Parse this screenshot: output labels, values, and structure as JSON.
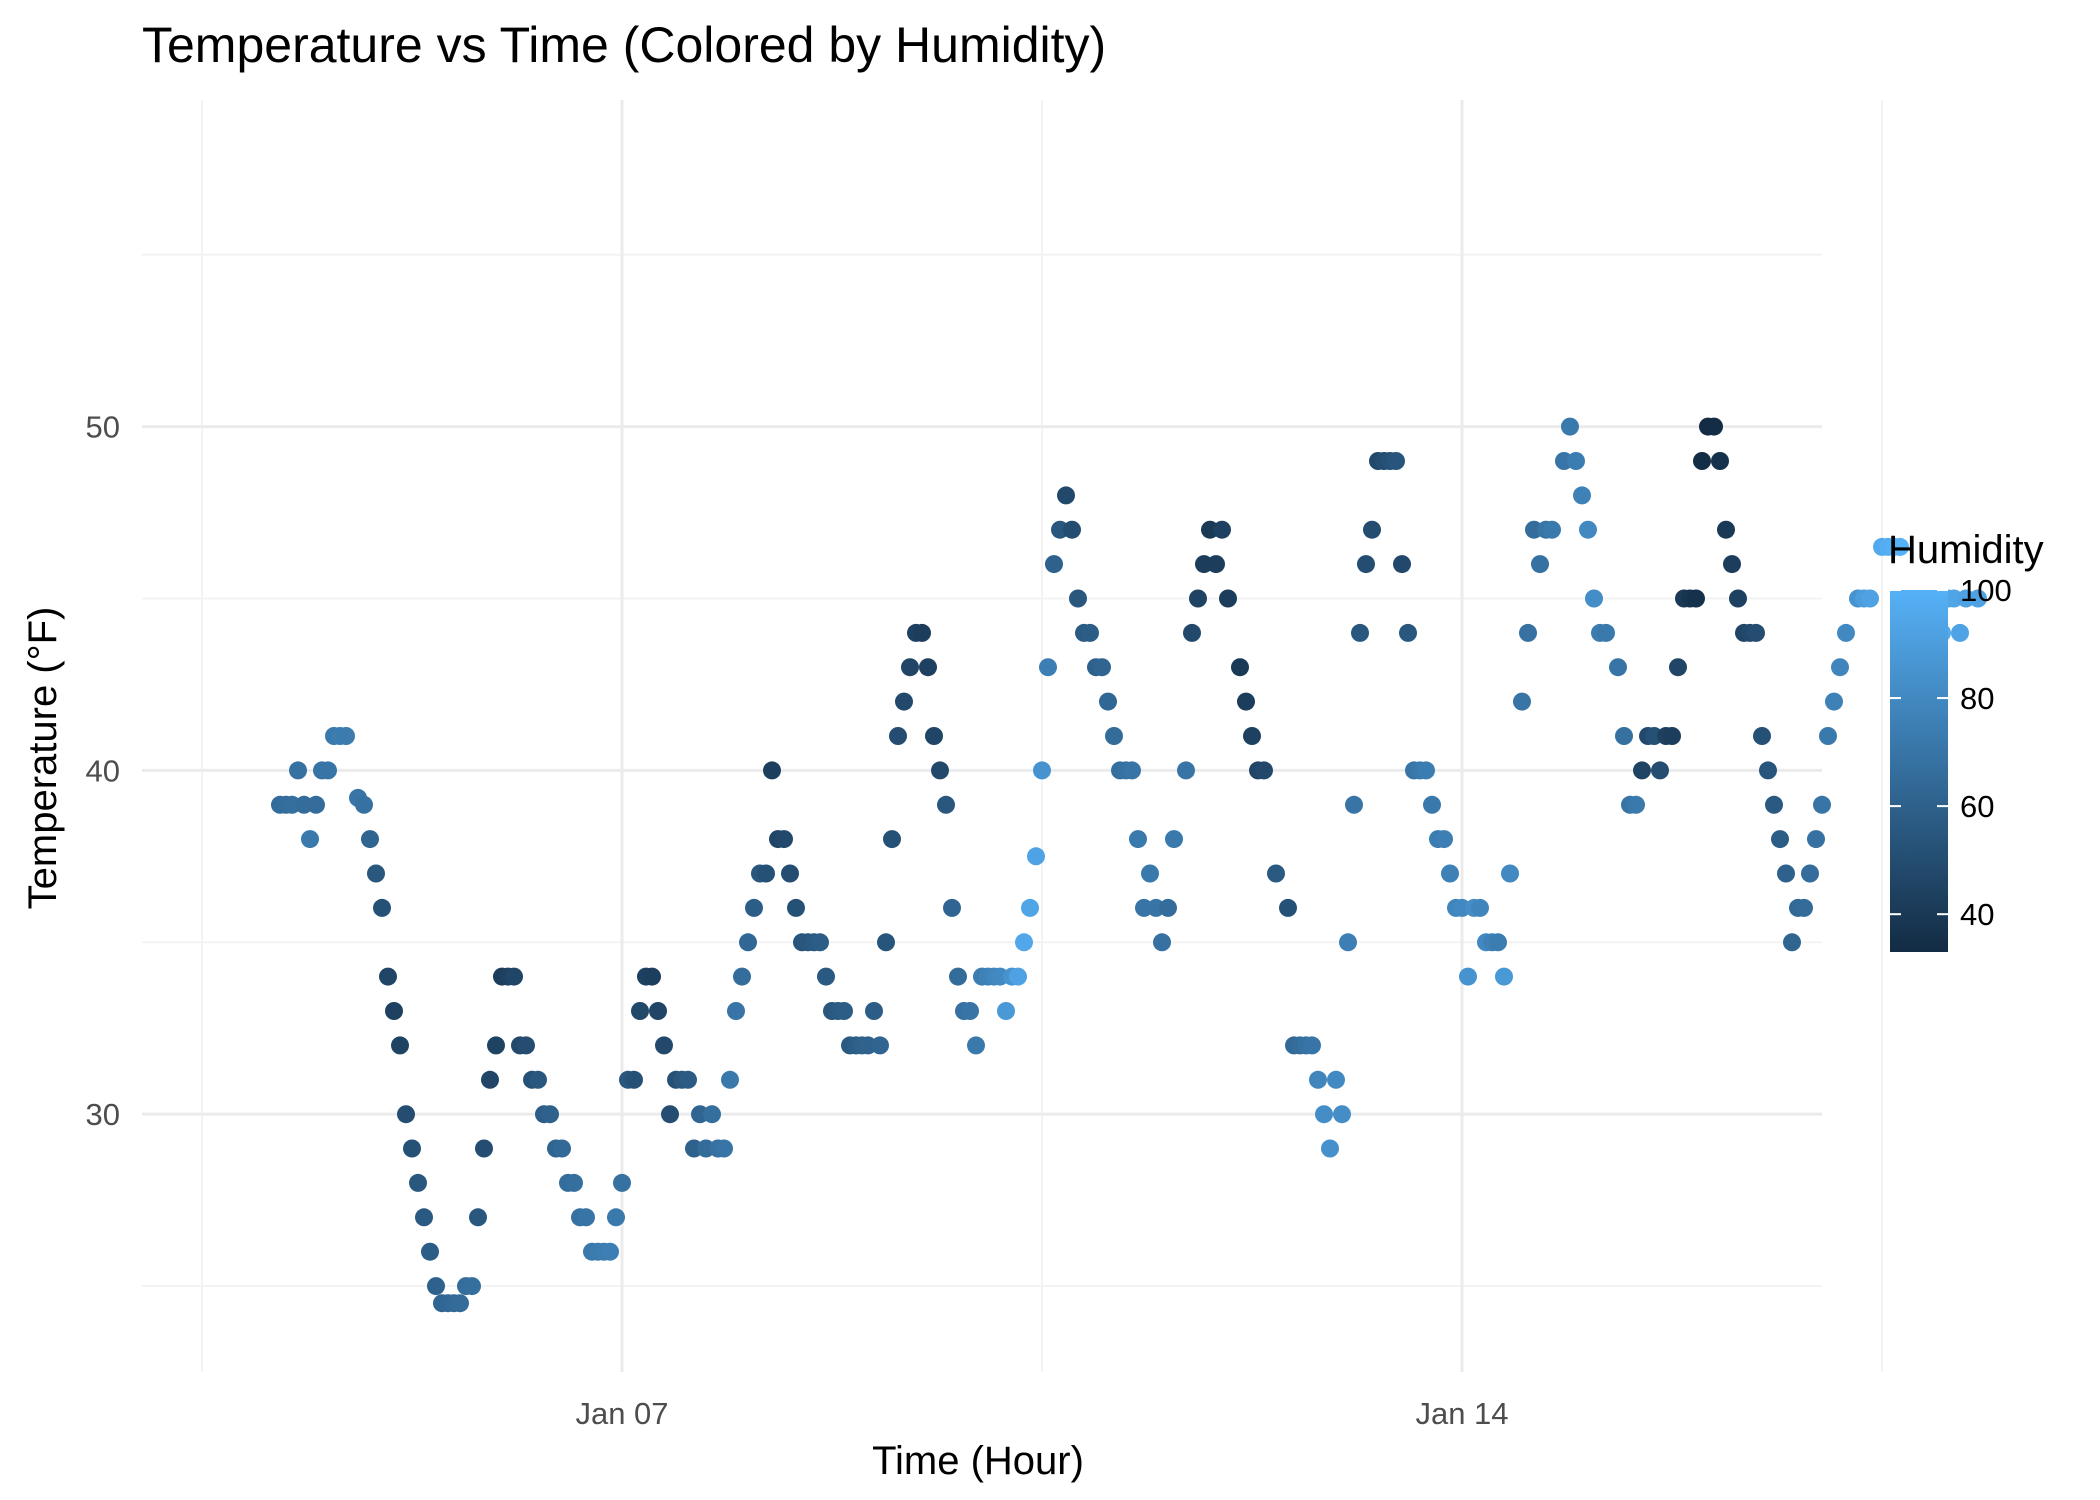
{
  "chart_data": {
    "type": "scatter",
    "title": "Temperature vs Time (Colored by Humidity)",
    "xlabel": "Time (Hour)",
    "ylabel": "Temperature (°F)",
    "x_axis": {
      "kind": "date",
      "range_days": [
        3.0,
        17.0
      ],
      "ticks": [
        {
          "day": 7,
          "label": "Jan 07"
        },
        {
          "day": 14,
          "label": "Jan 14"
        }
      ],
      "minor_gridline_days": [
        3.5,
        10.5,
        17.5
      ]
    },
    "y_axis": {
      "range": [
        22.5,
        59.5
      ],
      "ticks": [
        30,
        40,
        50
      ],
      "minor_ticks": [
        25,
        35,
        45,
        55
      ]
    },
    "color_scale": {
      "name": "Humidity",
      "low_color": "#132B43",
      "high_color": "#56B1F7",
      "domain": [
        33,
        100
      ],
      "ticks": [
        40,
        60,
        80,
        100
      ]
    },
    "grid": true,
    "legend_position": "right",
    "x_unit_note": "x values are day of January",
    "points": [
      [
        4.15,
        39,
        65
      ],
      [
        4.2,
        39,
        66
      ],
      [
        4.25,
        39,
        67
      ],
      [
        4.3,
        40,
        68
      ],
      [
        4.35,
        39,
        66
      ],
      [
        4.4,
        38,
        72
      ],
      [
        4.45,
        39,
        66
      ],
      [
        4.5,
        40,
        69
      ],
      [
        4.55,
        40,
        70
      ],
      [
        4.6,
        41,
        72
      ],
      [
        4.65,
        41,
        74
      ],
      [
        4.7,
        41,
        73
      ],
      [
        4.8,
        39.2,
        70
      ],
      [
        4.85,
        39,
        68
      ],
      [
        4.9,
        38,
        62
      ],
      [
        4.95,
        37,
        55
      ],
      [
        5.0,
        36,
        52
      ],
      [
        5.05,
        34,
        46
      ],
      [
        5.1,
        33,
        44
      ],
      [
        5.15,
        32,
        45
      ],
      [
        5.2,
        30,
        50
      ],
      [
        5.25,
        29,
        52
      ],
      [
        5.3,
        28,
        55
      ],
      [
        5.35,
        27,
        56
      ],
      [
        5.4,
        26,
        58
      ],
      [
        5.45,
        25,
        60
      ],
      [
        5.5,
        24.5,
        62
      ],
      [
        5.55,
        24.5,
        63
      ],
      [
        5.6,
        24.5,
        64
      ],
      [
        5.65,
        24.5,
        65
      ],
      [
        5.7,
        25,
        66
      ],
      [
        5.75,
        25,
        67
      ],
      [
        5.8,
        27,
        55
      ],
      [
        5.85,
        29,
        50
      ],
      [
        5.9,
        31,
        46
      ],
      [
        5.95,
        32,
        45
      ],
      [
        6.0,
        34,
        42
      ],
      [
        6.05,
        34,
        44
      ],
      [
        6.1,
        34,
        46
      ],
      [
        6.15,
        32,
        48
      ],
      [
        6.2,
        32,
        50
      ],
      [
        6.25,
        31,
        52
      ],
      [
        6.3,
        31,
        55
      ],
      [
        6.35,
        30,
        58
      ],
      [
        6.4,
        30,
        60
      ],
      [
        6.45,
        29,
        62
      ],
      [
        6.5,
        29,
        64
      ],
      [
        6.55,
        28,
        66
      ],
      [
        6.6,
        28,
        67
      ],
      [
        6.65,
        27,
        68
      ],
      [
        6.7,
        27,
        70
      ],
      [
        6.75,
        26,
        72
      ],
      [
        6.8,
        26,
        73
      ],
      [
        6.85,
        26,
        74
      ],
      [
        6.9,
        26,
        75
      ],
      [
        6.95,
        27,
        72
      ],
      [
        7.0,
        28,
        68
      ],
      [
        7.05,
        31,
        55
      ],
      [
        7.1,
        31,
        52
      ],
      [
        7.15,
        33,
        47
      ],
      [
        7.2,
        34,
        44
      ],
      [
        7.25,
        34,
        43
      ],
      [
        7.3,
        33,
        46
      ],
      [
        7.35,
        32,
        48
      ],
      [
        7.4,
        30,
        50
      ],
      [
        7.45,
        31,
        52
      ],
      [
        7.5,
        31,
        55
      ],
      [
        7.55,
        31,
        57
      ],
      [
        7.6,
        29,
        60
      ],
      [
        7.65,
        30,
        62
      ],
      [
        7.7,
        29,
        65
      ],
      [
        7.75,
        30,
        67
      ],
      [
        7.8,
        29,
        68
      ],
      [
        7.85,
        29,
        70
      ],
      [
        7.9,
        31,
        72
      ],
      [
        7.95,
        33,
        70
      ],
      [
        8.0,
        34,
        66
      ],
      [
        8.05,
        35,
        63
      ],
      [
        8.1,
        36,
        58
      ],
      [
        8.15,
        37,
        55
      ],
      [
        8.2,
        37,
        52
      ],
      [
        8.25,
        40,
        43
      ],
      [
        8.3,
        38,
        46
      ],
      [
        8.35,
        38,
        48
      ],
      [
        8.4,
        37,
        50
      ],
      [
        8.45,
        36,
        52
      ],
      [
        8.5,
        35,
        54
      ],
      [
        8.55,
        35,
        55
      ],
      [
        8.6,
        35,
        56
      ],
      [
        8.65,
        35,
        58
      ],
      [
        8.7,
        34,
        56
      ],
      [
        8.75,
        33,
        55
      ],
      [
        8.8,
        33,
        57
      ],
      [
        8.85,
        33,
        58
      ],
      [
        8.9,
        32,
        56
      ],
      [
        8.95,
        32,
        58
      ],
      [
        9.0,
        32,
        60
      ],
      [
        9.05,
        32,
        61
      ],
      [
        9.1,
        33,
        58
      ],
      [
        9.15,
        32,
        62
      ],
      [
        9.2,
        35,
        54
      ],
      [
        9.25,
        38,
        52
      ],
      [
        9.3,
        41,
        50
      ],
      [
        9.35,
        42,
        48
      ],
      [
        9.4,
        43,
        46
      ],
      [
        9.45,
        44,
        44
      ],
      [
        9.5,
        44,
        42
      ],
      [
        9.55,
        43,
        44
      ],
      [
        9.6,
        41,
        46
      ],
      [
        9.65,
        40,
        48
      ],
      [
        9.7,
        39,
        55
      ],
      [
        9.75,
        36,
        62
      ],
      [
        9.8,
        34,
        65
      ],
      [
        9.85,
        33,
        68
      ],
      [
        9.9,
        33,
        70
      ],
      [
        9.95,
        32,
        72
      ],
      [
        10.0,
        34,
        74
      ],
      [
        10.05,
        34,
        76
      ],
      [
        10.1,
        34,
        78
      ],
      [
        10.15,
        34,
        80
      ],
      [
        10.2,
        33,
        88
      ],
      [
        10.25,
        34,
        85
      ],
      [
        10.3,
        34,
        92
      ],
      [
        10.35,
        35,
        95
      ],
      [
        10.4,
        36,
        94
      ],
      [
        10.45,
        37.5,
        93
      ],
      [
        10.5,
        40,
        85
      ],
      [
        10.55,
        43,
        75
      ],
      [
        10.6,
        46,
        60
      ],
      [
        10.65,
        47,
        55
      ],
      [
        10.7,
        48,
        48
      ],
      [
        10.75,
        47,
        50
      ],
      [
        10.8,
        45,
        55
      ],
      [
        10.85,
        44,
        57
      ],
      [
        10.9,
        44,
        58
      ],
      [
        10.95,
        43,
        60
      ],
      [
        11.0,
        43,
        62
      ],
      [
        11.05,
        42,
        63
      ],
      [
        11.1,
        41,
        65
      ],
      [
        11.15,
        40,
        67
      ],
      [
        11.2,
        40,
        68
      ],
      [
        11.25,
        40,
        70
      ],
      [
        11.3,
        38,
        72
      ],
      [
        11.35,
        36,
        70
      ],
      [
        11.4,
        37,
        72
      ],
      [
        11.45,
        36,
        70
      ],
      [
        11.5,
        35,
        68
      ],
      [
        11.55,
        36,
        66
      ],
      [
        11.6,
        38,
        72
      ],
      [
        11.7,
        40,
        70
      ],
      [
        11.75,
        44,
        48
      ],
      [
        11.8,
        45,
        45
      ],
      [
        11.85,
        46,
        42
      ],
      [
        11.9,
        47,
        40
      ],
      [
        11.95,
        46,
        42
      ],
      [
        12.0,
        47,
        44
      ],
      [
        12.05,
        45,
        42
      ],
      [
        12.15,
        43,
        40
      ],
      [
        12.2,
        42,
        42
      ],
      [
        12.25,
        41,
        44
      ],
      [
        12.3,
        40,
        46
      ],
      [
        12.35,
        40,
        48
      ],
      [
        12.45,
        37,
        56
      ],
      [
        12.55,
        36,
        52
      ],
      [
        12.6,
        32,
        64
      ],
      [
        12.65,
        32,
        66
      ],
      [
        12.7,
        32,
        68
      ],
      [
        12.75,
        32,
        70
      ],
      [
        12.8,
        31,
        78
      ],
      [
        12.85,
        30,
        82
      ],
      [
        12.9,
        29,
        84
      ],
      [
        12.95,
        31,
        80
      ],
      [
        13.0,
        30,
        82
      ],
      [
        13.05,
        35,
        75
      ],
      [
        13.1,
        39,
        70
      ],
      [
        13.15,
        44,
        55
      ],
      [
        13.2,
        46,
        50
      ],
      [
        13.25,
        47,
        50
      ],
      [
        13.3,
        49,
        48
      ],
      [
        13.35,
        49,
        50
      ],
      [
        13.4,
        49,
        52
      ],
      [
        13.45,
        49,
        54
      ],
      [
        13.5,
        46,
        48
      ],
      [
        13.55,
        44,
        55
      ],
      [
        13.6,
        40,
        70
      ],
      [
        13.65,
        40,
        72
      ],
      [
        13.7,
        40,
        74
      ],
      [
        13.75,
        39,
        72
      ],
      [
        13.8,
        38,
        74
      ],
      [
        13.85,
        38,
        75
      ],
      [
        13.9,
        37,
        76
      ],
      [
        13.95,
        36,
        78
      ],
      [
        14.0,
        36,
        80
      ],
      [
        14.05,
        34,
        85
      ],
      [
        14.1,
        36,
        82
      ],
      [
        14.15,
        36,
        78
      ],
      [
        14.2,
        35,
        80
      ],
      [
        14.25,
        35,
        76
      ],
      [
        14.3,
        35,
        74
      ],
      [
        14.35,
        34,
        88
      ],
      [
        14.4,
        37,
        80
      ],
      [
        14.5,
        42,
        70
      ],
      [
        14.55,
        44,
        68
      ],
      [
        14.6,
        47,
        66
      ],
      [
        14.65,
        46,
        68
      ],
      [
        14.7,
        47,
        70
      ],
      [
        14.75,
        47,
        72
      ],
      [
        14.85,
        49,
        70
      ],
      [
        14.9,
        50,
        72
      ],
      [
        14.95,
        49,
        74
      ],
      [
        15.0,
        48,
        76
      ],
      [
        15.05,
        47,
        80
      ],
      [
        15.1,
        45,
        82
      ],
      [
        15.15,
        44,
        74
      ],
      [
        15.2,
        44,
        72
      ],
      [
        15.3,
        43,
        70
      ],
      [
        15.35,
        41,
        68
      ],
      [
        15.4,
        39,
        70
      ],
      [
        15.45,
        39,
        72
      ],
      [
        15.5,
        40,
        45
      ],
      [
        15.55,
        41,
        48
      ],
      [
        15.6,
        41,
        52
      ],
      [
        15.65,
        40,
        50
      ],
      [
        15.7,
        41,
        44
      ],
      [
        15.75,
        41,
        42
      ],
      [
        15.8,
        43,
        46
      ],
      [
        15.85,
        45,
        40
      ],
      [
        15.9,
        45,
        38
      ],
      [
        15.95,
        45,
        36
      ],
      [
        16.0,
        49,
        34
      ],
      [
        16.05,
        50,
        33
      ],
      [
        16.1,
        50,
        34
      ],
      [
        16.15,
        49,
        36
      ],
      [
        16.2,
        47,
        40
      ],
      [
        16.25,
        46,
        42
      ],
      [
        16.3,
        45,
        44
      ],
      [
        16.35,
        44,
        46
      ],
      [
        16.4,
        44,
        48
      ],
      [
        16.45,
        44,
        50
      ],
      [
        16.5,
        41,
        52
      ],
      [
        16.55,
        40,
        54
      ],
      [
        16.6,
        39,
        56
      ],
      [
        16.65,
        38,
        58
      ],
      [
        16.7,
        37,
        60
      ],
      [
        16.75,
        35,
        62
      ],
      [
        16.8,
        36,
        64
      ],
      [
        16.85,
        36,
        65
      ],
      [
        16.9,
        37,
        66
      ],
      [
        16.95,
        38,
        68
      ],
      [
        17.0,
        39,
        70
      ],
      [
        17.05,
        41,
        72
      ],
      [
        17.1,
        42,
        76
      ],
      [
        17.15,
        43,
        78
      ],
      [
        17.2,
        44,
        80
      ],
      [
        17.3,
        45,
        85
      ],
      [
        17.35,
        45,
        90
      ],
      [
        17.4,
        45,
        92
      ],
      [
        17.5,
        46.5,
        96
      ],
      [
        17.55,
        46.5,
        98
      ],
      [
        17.6,
        46.5,
        99
      ],
      [
        17.65,
        46.5,
        100
      ],
      [
        17.75,
        44.5,
        98
      ],
      [
        17.8,
        43,
        100
      ],
      [
        17.85,
        43,
        99
      ],
      [
        17.9,
        44,
        98
      ],
      [
        17.95,
        44,
        97
      ],
      [
        18.0,
        44,
        96
      ],
      [
        18.05,
        45,
        95
      ],
      [
        18.1,
        45,
        94
      ],
      [
        18.15,
        44,
        93
      ],
      [
        18.2,
        45,
        92
      ],
      [
        18.3,
        45,
        92
      ]
    ]
  }
}
